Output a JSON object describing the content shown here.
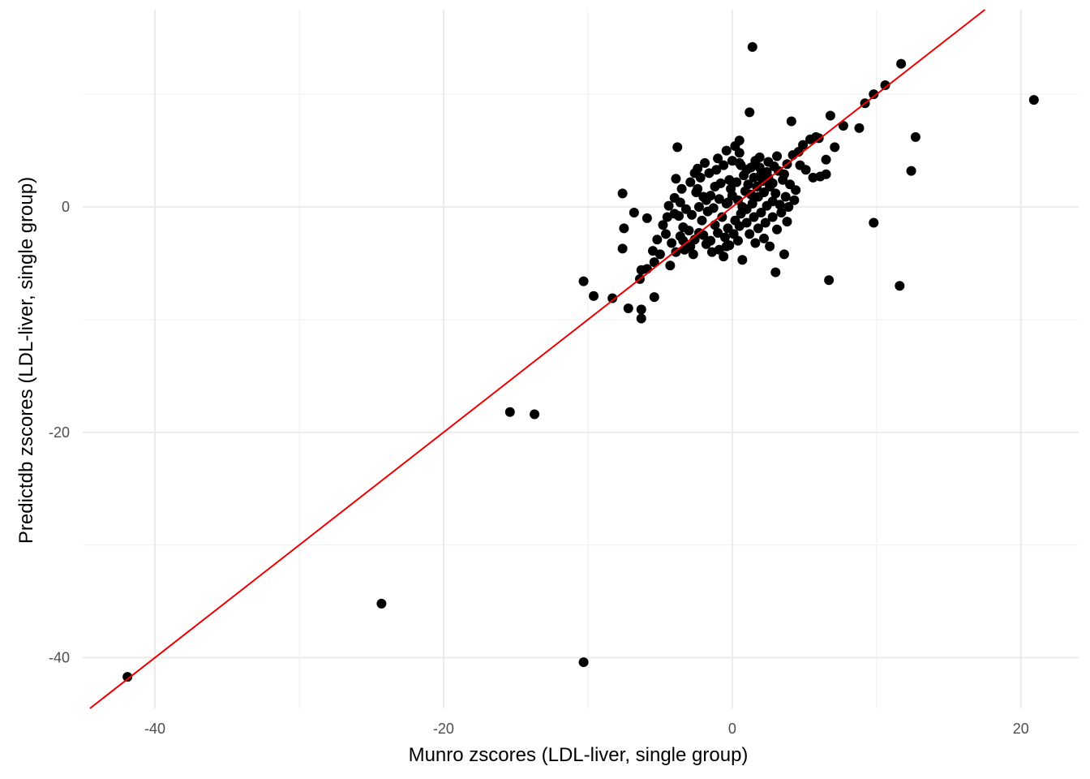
{
  "chart_data": {
    "type": "scatter",
    "title": "",
    "xlabel": "Munro zscores (LDL-liver, single group)",
    "ylabel": "Predictdb zscores (LDL-liver, single group)",
    "xlim": [
      -45,
      24
    ],
    "ylim": [
      -44.5,
      17.5
    ],
    "x_ticks": [
      -40,
      -20,
      0,
      20
    ],
    "x_tick_labels": [
      "-40",
      "-20",
      "0",
      "20"
    ],
    "y_ticks": [
      -40,
      -20,
      0
    ],
    "y_tick_labels": [
      "-40",
      "-20",
      "0"
    ],
    "grid": true,
    "legend": "none",
    "point_color": "#000000",
    "reference_line": {
      "slope": 1,
      "intercept": 0,
      "color": "#ee0000"
    },
    "points": [
      [
        -41.9,
        -41.7
      ],
      [
        -24.3,
        -35.2
      ],
      [
        -10.3,
        -40.4
      ],
      [
        -15.4,
        -18.2
      ],
      [
        -13.7,
        -18.4
      ],
      [
        -10.3,
        -6.6
      ],
      [
        -9.6,
        -7.9
      ],
      [
        -8.3,
        -8.1
      ],
      [
        -7.2,
        -9.0
      ],
      [
        -6.3,
        -9.1
      ],
      [
        -6.3,
        -9.9
      ],
      [
        -5.4,
        -8.0
      ],
      [
        -6.4,
        -6.4
      ],
      [
        -6.3,
        -5.6
      ],
      [
        -5.9,
        -5.5
      ],
      [
        -5.4,
        -4.9
      ],
      [
        -5.0,
        -4.2
      ],
      [
        -4.3,
        -5.2
      ],
      [
        -7.6,
        1.2
      ],
      [
        -6.8,
        -0.5
      ],
      [
        -7.5,
        -1.9
      ],
      [
        -7.6,
        -3.7
      ],
      [
        -5.9,
        -1.0
      ],
      [
        -4.5,
        -0.9
      ],
      [
        -4.0,
        -0.6
      ],
      [
        -3.8,
        5.3
      ],
      [
        -3.9,
        2.5
      ],
      [
        -3.6,
        0.4
      ],
      [
        -3.4,
        -1.8
      ],
      [
        -2.9,
        -3.5
      ],
      [
        -2.4,
        1.6
      ],
      [
        -2.3,
        -2.3
      ],
      [
        -2.4,
        3.4
      ],
      [
        -1.8,
        -3.3
      ],
      [
        -1.0,
        4.3
      ],
      [
        -0.3,
        0.4
      ],
      [
        0.5,
        5.9
      ],
      [
        0.5,
        4.8
      ],
      [
        0.6,
        3.7
      ],
      [
        1.2,
        8.4
      ],
      [
        1.4,
        14.2
      ],
      [
        1.3,
        3.5
      ],
      [
        1.6,
        4.1
      ],
      [
        1.9,
        3.5
      ],
      [
        0.7,
        -4.7
      ],
      [
        -0.4,
        -3.5
      ],
      [
        3.0,
        -5.8
      ],
      [
        3.6,
        -4.2
      ],
      [
        2.8,
        2.1
      ],
      [
        3.7,
        0.9
      ],
      [
        4.1,
        7.6
      ],
      [
        4.7,
        3.7
      ],
      [
        4.9,
        5.5
      ],
      [
        5.4,
        6.0
      ],
      [
        5.8,
        6.2
      ],
      [
        6.0,
        6.1
      ],
      [
        5.1,
        3.3
      ],
      [
        5.6,
        2.6
      ],
      [
        6.1,
        2.7
      ],
      [
        6.5,
        4.2
      ],
      [
        6.5,
        2.9
      ],
      [
        6.8,
        8.1
      ],
      [
        6.7,
        -6.5
      ],
      [
        7.1,
        5.3
      ],
      [
        7.7,
        7.2
      ],
      [
        8.8,
        7.0
      ],
      [
        9.2,
        9.2
      ],
      [
        9.8,
        10.0
      ],
      [
        10.6,
        10.8
      ],
      [
        11.7,
        12.7
      ],
      [
        12.7,
        6.2
      ],
      [
        12.4,
        3.2
      ],
      [
        9.8,
        -1.4
      ],
      [
        11.6,
        -7.0
      ],
      [
        20.9,
        9.5
      ],
      [
        -2.5,
        1.3
      ],
      [
        -2.0,
        0.9
      ],
      [
        -1.5,
        1.0
      ],
      [
        -1.2,
        1.8
      ],
      [
        -0.8,
        2.1
      ],
      [
        -0.2,
        2.4
      ],
      [
        0.3,
        2.2
      ],
      [
        0.8,
        2.8
      ],
      [
        1.1,
        2.0
      ],
      [
        1.5,
        2.6
      ],
      [
        2.0,
        2.9
      ],
      [
        2.4,
        3.1
      ],
      [
        2.9,
        3.6
      ],
      [
        3.2,
        3.2
      ],
      [
        3.5,
        2.4
      ],
      [
        -3.2,
        -0.2
      ],
      [
        -2.8,
        -0.7
      ],
      [
        -2.1,
        -1.2
      ],
      [
        -1.7,
        -0.4
      ],
      [
        -1.2,
        -1.6
      ],
      [
        -0.7,
        -0.9
      ],
      [
        -0.3,
        -1.9
      ],
      [
        0.2,
        -1.2
      ],
      [
        0.6,
        -0.6
      ],
      [
        1.0,
        -0.2
      ],
      [
        1.4,
        0.3
      ],
      [
        1.8,
        0.9
      ],
      [
        2.2,
        1.3
      ],
      [
        2.6,
        1.8
      ],
      [
        3.0,
        1.2
      ],
      [
        -3.6,
        -2.6
      ],
      [
        -3.0,
        -2.1
      ],
      [
        -2.6,
        -2.9
      ],
      [
        -2.0,
        -2.5
      ],
      [
        -1.5,
        -3.0
      ],
      [
        -1.0,
        -2.3
      ],
      [
        -0.5,
        -2.7
      ],
      [
        0.1,
        -2.4
      ],
      [
        0.5,
        -1.7
      ],
      [
        1.0,
        -1.4
      ],
      [
        1.5,
        -0.9
      ],
      [
        2.0,
        -0.5
      ],
      [
        2.4,
        0.1
      ],
      [
        2.8,
        0.5
      ],
      [
        3.3,
        0.2
      ],
      [
        -4.2,
        -3.2
      ],
      [
        -4.6,
        -2.4
      ],
      [
        -3.9,
        -4.0
      ],
      [
        -3.3,
        -3.8
      ],
      [
        -2.7,
        -4.2
      ],
      [
        -4.0,
        0.8
      ],
      [
        -3.5,
        1.6
      ],
      [
        -2.9,
        2.2
      ],
      [
        -2.2,
        2.6
      ],
      [
        -1.6,
        3.0
      ],
      [
        -1.1,
        3.3
      ],
      [
        -0.6,
        3.7
      ],
      [
        0.0,
        4.1
      ],
      [
        0.5,
        3.9
      ],
      [
        1.0,
        3.3
      ],
      [
        -0.9,
        -3.8
      ],
      [
        -0.2,
        -3.4
      ],
      [
        0.4,
        -3.0
      ],
      [
        1.2,
        -2.4
      ],
      [
        1.8,
        -1.9
      ],
      [
        2.3,
        -1.4
      ],
      [
        2.8,
        -0.9
      ],
      [
        3.4,
        -0.5
      ],
      [
        3.9,
        0.0
      ],
      [
        4.3,
        0.6
      ],
      [
        -5.2,
        -2.9
      ],
      [
        -4.8,
        -1.6
      ],
      [
        -5.5,
        -3.9
      ],
      [
        -4.4,
        0.1
      ],
      [
        -3.7,
        -0.8
      ],
      [
        -2.3,
        0.0
      ],
      [
        -1.8,
        0.6
      ],
      [
        -1.3,
        -0.1
      ],
      [
        -0.9,
        0.7
      ],
      [
        -0.4,
        0.3
      ],
      [
        0.0,
        1.0
      ],
      [
        0.4,
        0.6
      ],
      [
        0.9,
        1.4
      ],
      [
        1.3,
        1.1
      ],
      [
        1.7,
        1.8
      ],
      [
        2.1,
        2.3
      ],
      [
        2.5,
        2.6
      ],
      [
        3.6,
        2.9
      ],
      [
        4.0,
        2.0
      ],
      [
        4.4,
        1.5
      ],
      [
        -2.6,
        3.0
      ],
      [
        -1.9,
        3.9
      ],
      [
        -0.4,
        5.0
      ],
      [
        0.2,
        5.4
      ],
      [
        1.9,
        4.4
      ],
      [
        2.5,
        4.0
      ],
      [
        3.1,
        4.5
      ],
      [
        3.8,
        3.8
      ],
      [
        4.2,
        4.6
      ],
      [
        4.6,
        4.9
      ],
      [
        -3.4,
        -3.0
      ],
      [
        -1.4,
        -4.0
      ],
      [
        -0.6,
        -4.4
      ],
      [
        1.6,
        -3.2
      ],
      [
        2.2,
        -2.8
      ],
      [
        3.1,
        -2.0
      ],
      [
        3.8,
        -1.3
      ],
      [
        2.6,
        -3.5
      ],
      [
        -0.1,
        1.6
      ],
      [
        0.7,
        0.0
      ]
    ]
  }
}
